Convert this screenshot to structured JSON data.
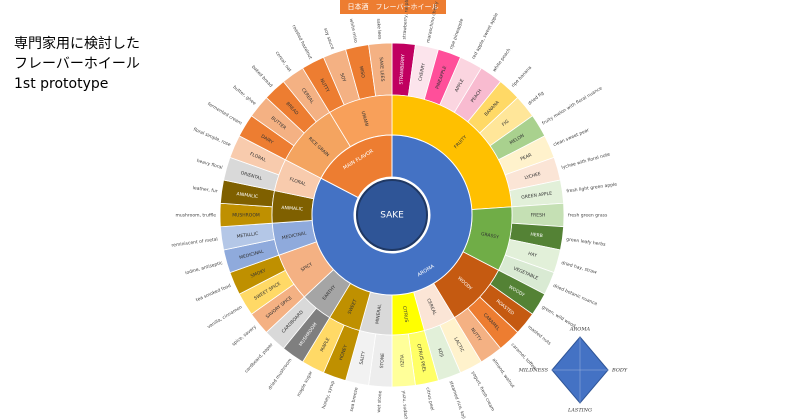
{
  "header": {
    "lines": [
      "専門家用に検討した",
      "フレーバーホイール",
      "1st prototype"
    ],
    "banner": "日本酒　フレーバーホイール"
  },
  "wheel": {
    "center": "SAKE",
    "sections": [
      {
        "label": "AROMA",
        "color": "#4472c4",
        "groups": [
          {
            "label": "FRUITY",
            "color": "#ffc000",
            "leaves": [
              {
                "label": "STRAWBERRY",
                "color": "#c00060",
                "note": "strawberry, raspberry"
              },
              {
                "label": "CHERRY",
                "color": "#fce4ec",
                "note": "maraschino cherry"
              },
              {
                "label": "PINEAPPLE",
                "color": "#ff4f9a",
                "note": "ripe pineapple"
              },
              {
                "label": "APPLE",
                "color": "#fbd5e0",
                "note": "red apple, sweet apple"
              },
              {
                "label": "PEACH",
                "color": "#f8bbd0",
                "note": "white peach"
              },
              {
                "label": "BANANA",
                "color": "#ffd966",
                "note": "ripe banana"
              },
              {
                "label": "FIG",
                "color": "#ffe699",
                "note": "dried fig"
              },
              {
                "label": "MELON",
                "color": "#a9d18e",
                "note": "fruity melon with floral nuance"
              },
              {
                "label": "PEAR",
                "color": "#fff2cc",
                "note": "clean sweet pear"
              },
              {
                "label": "LYCHEE",
                "color": "#fbe5d6",
                "note": "lychee with floral note"
              },
              {
                "label": "GREEN APPLE",
                "color": "#e2f0d9",
                "note": "fresh light green apple"
              }
            ]
          },
          {
            "label": "GRASSY",
            "color": "#70ad47",
            "leaves": [
              {
                "label": "FRESH",
                "color": "#c5e0b4",
                "note": "fresh green grass"
              },
              {
                "label": "HERB",
                "color": "#548235",
                "note": "green leafy herbs"
              },
              {
                "label": "HAY",
                "color": "#e2f0d9",
                "note": "dried hay, straw"
              },
              {
                "label": "VEGETABLE",
                "color": "#d9ead3",
                "note": "dried botanic nuance"
              }
            ]
          },
          {
            "label": "WOODY",
            "color": "#c55a11",
            "leaves": [
              {
                "label": "WOODY",
                "color": "#548235",
                "note": "green, wild wood"
              },
              {
                "label": "ROASTED",
                "color": "#c55a11",
                "note": "roasted nuts"
              },
              {
                "label": "CARAMEL",
                "color": "#ed7d31",
                "note": "caramel, toffee"
              },
              {
                "label": "NUTTY",
                "color": "#f4b183",
                "note": "almond, walnut"
              }
            ]
          },
          {
            "label": "CEREAL",
            "color": "#fbe5d6",
            "leaves": [
              {
                "label": "LACTIC",
                "color": "#fff2cc",
                "note": "yogurt, fresh cream"
              },
              {
                "label": "KOJI",
                "color": "#e2f0d9",
                "note": "steamed rice, koji"
              }
            ]
          },
          {
            "label": "CITRUS",
            "color": "#ffff00",
            "leaves": [
              {
                "label": "CITRUS PEEL",
                "color": "#ffff66",
                "note": "citrus peel"
              },
              {
                "label": "YUZU",
                "color": "#ffff99",
                "note": "yuzu, sudachi"
              }
            ]
          },
          {
            "label": "MINERAL",
            "color": "#d9d9d9",
            "leaves": [
              {
                "label": "STONE",
                "color": "#ededed",
                "note": "wet stone"
              },
              {
                "label": "SALTY",
                "color": "#f2f2f2",
                "note": "sea breeze"
              }
            ]
          },
          {
            "label": "SWEET",
            "color": "#bf9000",
            "leaves": [
              {
                "label": "HONEY",
                "color": "#bf9000",
                "note": "honey, syrup"
              },
              {
                "label": "MAPLE",
                "color": "#ffd966",
                "note": "maple sugar"
              }
            ]
          },
          {
            "label": "EARTHY",
            "color": "#a5a5a5",
            "leaves": [
              {
                "label": "MUSHROOM",
                "color": "#7f7f7f",
                "note": "dried mushroom"
              },
              {
                "label": "CARDBOARD",
                "color": "#d9d9d9",
                "note": "cardboard, paper"
              }
            ]
          },
          {
            "label": "SPICY",
            "color": "#f4b183",
            "leaves": [
              {
                "label": "SAVORY SPICE",
                "color": "#f4b183",
                "note": "spice, savory"
              },
              {
                "label": "SWEET SPICE",
                "color": "#ffd966",
                "note": "vanilla, cinnamon"
              },
              {
                "label": "SMOKY",
                "color": "#bf9000",
                "note": "tea smoked food"
              }
            ]
          },
          {
            "label": "MEDICINAL",
            "color": "#8faadc",
            "leaves": [
              {
                "label": "MEDICINAL",
                "color": "#8faadc",
                "note": "iodine, antiseptic"
              },
              {
                "label": "METALLIC",
                "color": "#b4c7e7",
                "note": "reminiscent of metal"
              }
            ]
          },
          {
            "label": "ANIMALIC",
            "color": "#7f6000",
            "leaves": [
              {
                "label": "MUSHROOM",
                "color": "#bf9000",
                "note": "mushroom, truffle"
              },
              {
                "label": "ANIMALIC",
                "color": "#7f6000",
                "note": "leather, fur"
              }
            ]
          },
          {
            "label": "FLORAL",
            "color": "#f8cbad",
            "leaves": [
              {
                "label": "ORIENTAL",
                "color": "#d9d9d9",
                "note": "heavy floral"
              },
              {
                "label": "FLORAL",
                "color": "#f8cbad",
                "note": "floral simple, rose"
              }
            ]
          }
        ]
      },
      {
        "label": "MAIN FLAVOR",
        "color": "#ed7d31",
        "groups": [
          {
            "label": "RICE GRAIN",
            "color": "#f4a460",
            "leaves": [
              {
                "label": "DAIRY",
                "color": "#ed7d31",
                "note": "fermented cream"
              },
              {
                "label": "BUTTER",
                "color": "#f4b183",
                "note": "butter, ghee"
              },
              {
                "label": "BREAD",
                "color": "#ed7d31",
                "note": "baked bread"
              },
              {
                "label": "CEREAL",
                "color": "#f4b183",
                "note": "cereal, oat"
              }
            ]
          },
          {
            "label": "UMAMI",
            "color": "#f8a05a",
            "leaves": [
              {
                "label": "NUTTY",
                "color": "#ed7d31",
                "note": "roasted hazelnut"
              },
              {
                "label": "SOY",
                "color": "#f4b183",
                "note": "soy sauce"
              },
              {
                "label": "MISO",
                "color": "#ed7d31",
                "note": "white miso"
              },
              {
                "label": "SAKE LEES",
                "color": "#f4b183",
                "note": "sake lees"
              }
            ]
          }
        ]
      }
    ]
  },
  "radar": {
    "axes": [
      "AROMA",
      "BODY",
      "LASTING",
      "MILDNESS"
    ]
  }
}
